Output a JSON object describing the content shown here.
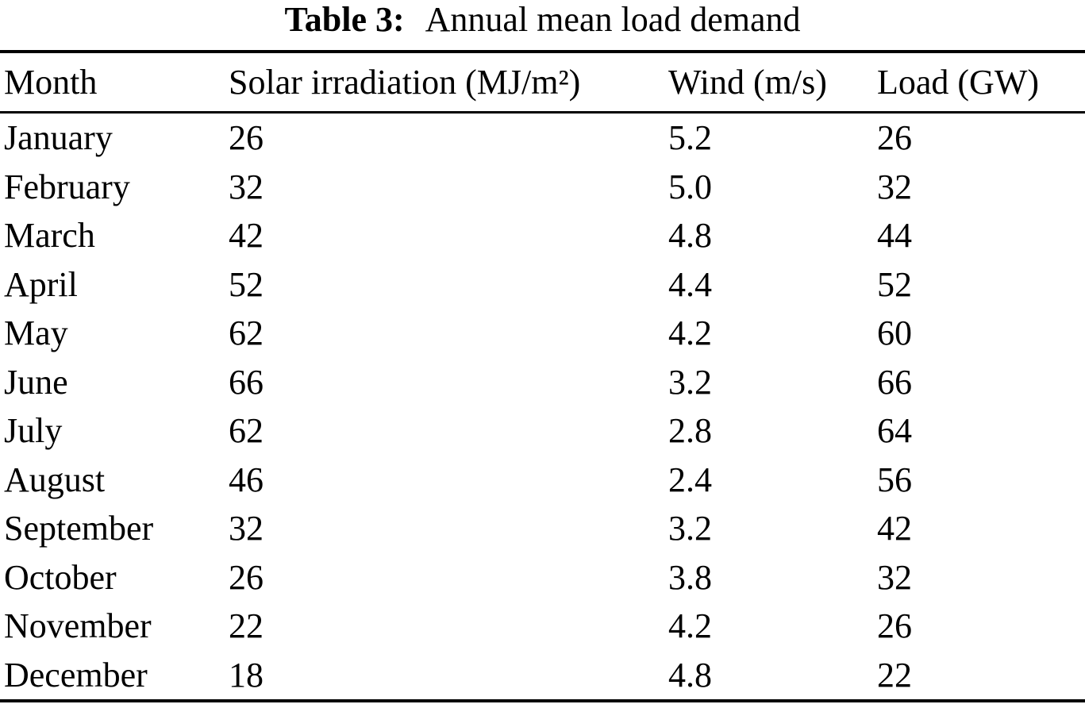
{
  "caption": {
    "label": "Table 3:",
    "text": "Annual mean load demand"
  },
  "table": {
    "columns": [
      "Month",
      "Solar irradiation (MJ/m²)",
      "Wind (m/s)",
      "Load (GW)"
    ],
    "column_keys": [
      "month",
      "solar-irradiation",
      "wind",
      "load"
    ],
    "rows": [
      [
        "January",
        "26",
        "5.2",
        "26"
      ],
      [
        "February",
        "32",
        "5.0",
        "32"
      ],
      [
        "March",
        "42",
        "4.8",
        "44"
      ],
      [
        "April",
        "52",
        "4.4",
        "52"
      ],
      [
        "May",
        "62",
        "4.2",
        "60"
      ],
      [
        "June",
        "66",
        "3.2",
        "66"
      ],
      [
        "July",
        "62",
        "2.8",
        "64"
      ],
      [
        "August",
        "46",
        "2.4",
        "56"
      ],
      [
        "September",
        "32",
        "3.2",
        "42"
      ],
      [
        "October",
        "26",
        "3.8",
        "32"
      ],
      [
        "November",
        "22",
        "4.2",
        "26"
      ],
      [
        "December",
        "18",
        "4.8",
        "22"
      ]
    ]
  },
  "colors": {
    "text": "#000000",
    "background": "#ffffff",
    "rule": "#000000"
  },
  "chart_data": {
    "type": "table",
    "title": "Table 3: Annual mean load demand",
    "categories": [
      "January",
      "February",
      "March",
      "April",
      "May",
      "June",
      "July",
      "August",
      "September",
      "October",
      "November",
      "December"
    ],
    "series": [
      {
        "name": "Solar irradiation (MJ/m²)",
        "values": [
          26,
          32,
          42,
          52,
          62,
          66,
          62,
          46,
          32,
          26,
          22,
          18
        ]
      },
      {
        "name": "Wind (m/s)",
        "values": [
          5.2,
          5.0,
          4.8,
          4.4,
          4.2,
          3.2,
          2.8,
          2.4,
          3.2,
          3.8,
          4.2,
          4.8
        ]
      },
      {
        "name": "Load (GW)",
        "values": [
          26,
          32,
          44,
          52,
          60,
          66,
          64,
          56,
          42,
          32,
          26,
          22
        ]
      }
    ]
  }
}
